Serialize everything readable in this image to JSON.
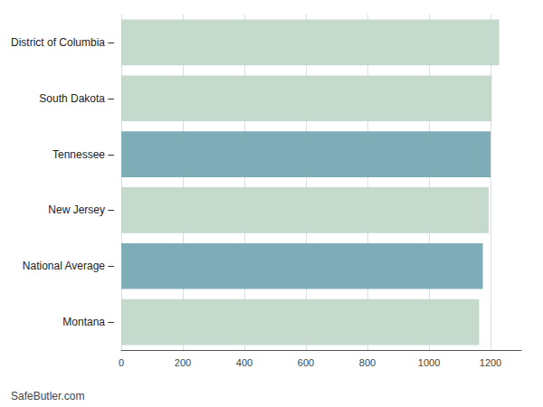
{
  "chart_data": {
    "type": "bar",
    "orientation": "horizontal",
    "categories": [
      "Montana –",
      "National Average –",
      "New Jersey –",
      "Tennessee –",
      "South Dakota –",
      "District of Columbia –"
    ],
    "values": [
      1163,
      1175,
      1194,
      1200,
      1204,
      1228
    ],
    "colors": [
      "#c5d9cc",
      "#7eadb8",
      "#c5d9cc",
      "#7eadb8",
      "#c5d9cc",
      "#c5d9cc"
    ],
    "xlim": [
      0,
      1300
    ],
    "xticks": [
      0,
      200,
      400,
      600,
      800,
      1000,
      1200
    ],
    "grid": true,
    "annotations": [
      "SafeButler.com"
    ]
  }
}
